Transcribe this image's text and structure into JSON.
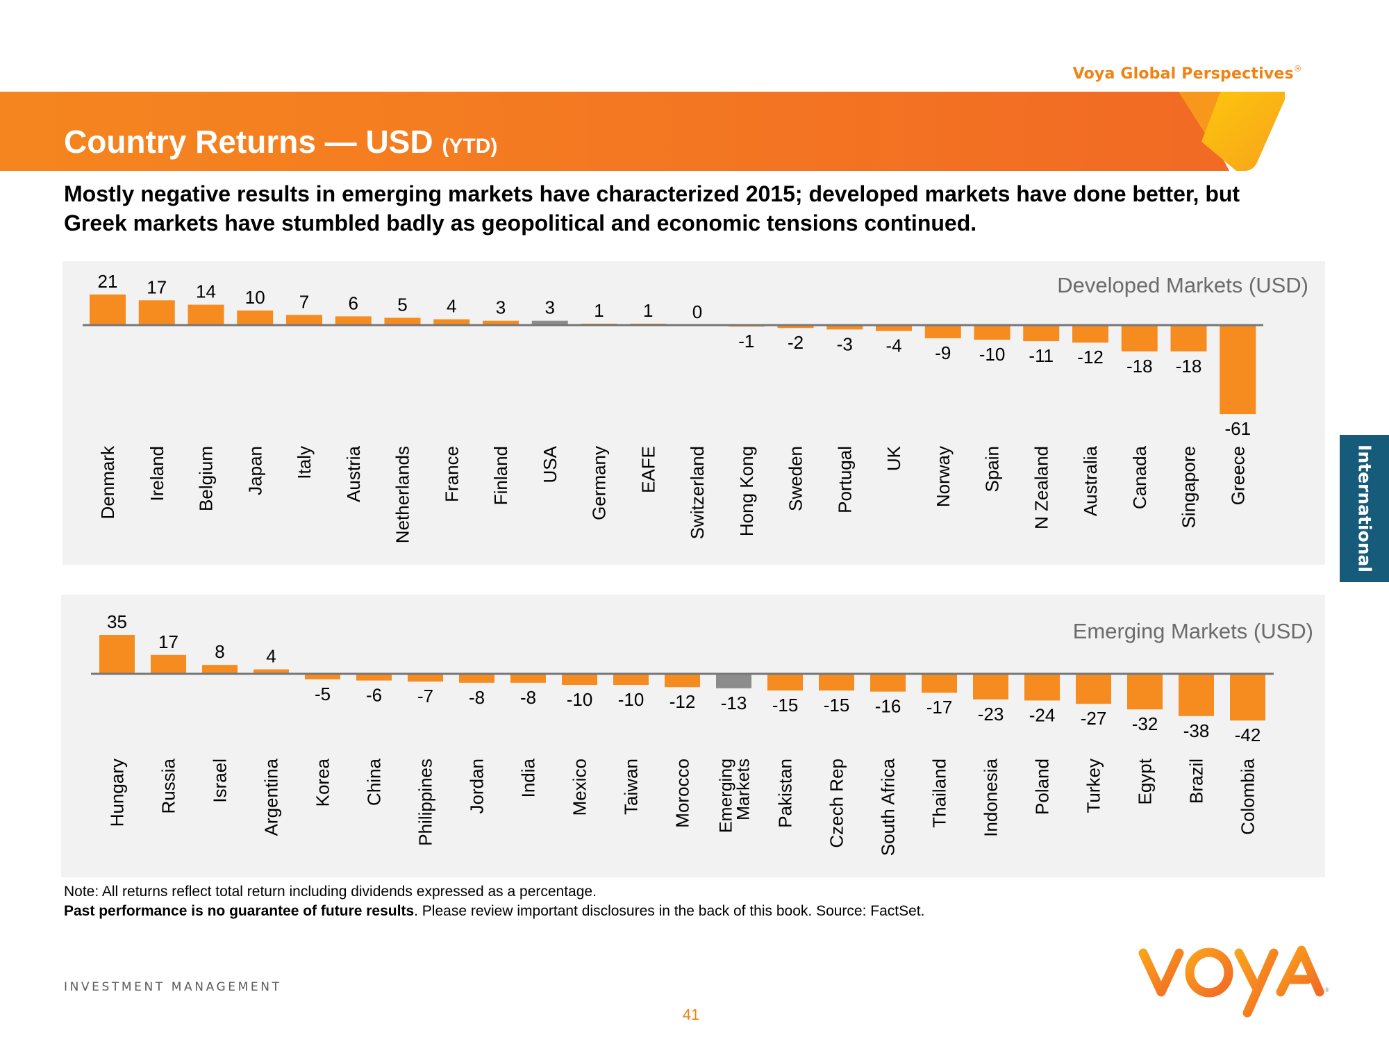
{
  "header": {
    "brand": "Voya Global Perspectives",
    "brand_mark": "®",
    "title": "Country Returns — USD",
    "title_suffix": "(YTD)",
    "subtitle": "Mostly negative results in emerging markets have characterized 2015; developed markets have done better, but Greek markets have stumbled badly as geopolitical and economic tensions continued."
  },
  "side_tab": {
    "label": "International"
  },
  "colors": {
    "bar": "#f68b1f",
    "benchmark_bar": "#8c8c8c",
    "axis": "#777777",
    "panel": "#f2f2f2",
    "banner_start": "#f5851f",
    "banner_end": "#f26a24",
    "tab": "#165b7a",
    "brand": "#f08213"
  },
  "chart_data": [
    {
      "type": "bar",
      "title": "Developed Markets (USD)",
      "xlabel": "",
      "ylabel": "",
      "units": "%",
      "grid": false,
      "categories": [
        "Denmark",
        "Ireland",
        "Belgium",
        "Japan",
        "Italy",
        "Austria",
        "Netherlands",
        "France",
        "Finland",
        "USA",
        "Germany",
        "EAFE",
        "Switzerland",
        "Hong Kong",
        "Sweden",
        "Portugal",
        "UK",
        "Norway",
        "Spain",
        "N Zealand",
        "Australia",
        "Canada",
        "Singapore",
        "Greece"
      ],
      "values": [
        21,
        17,
        14,
        10,
        7,
        6,
        5,
        4,
        3,
        3,
        1,
        1,
        0,
        -1,
        -2,
        -3,
        -4,
        -9,
        -10,
        -11,
        -12,
        -18,
        -18,
        -61
      ],
      "highlight": [
        "USA"
      ],
      "ylim": [
        -61,
        21
      ]
    },
    {
      "type": "bar",
      "title": "Emerging Markets (USD)",
      "xlabel": "",
      "ylabel": "",
      "units": "%",
      "grid": false,
      "categories": [
        "Hungary",
        "Russia",
        "Israel",
        "Argentina",
        "Korea",
        "China",
        "Philippines",
        "Jordan",
        "India",
        "Mexico",
        "Taiwan",
        "Morocco",
        "Emerging Markets",
        "Pakistan",
        "Czech Rep",
        "South Africa",
        "Thailand",
        "Indonesia",
        "Poland",
        "Turkey",
        "Egypt",
        "Brazil",
        "Colombia"
      ],
      "values": [
        35,
        17,
        8,
        4,
        -5,
        -6,
        -7,
        -8,
        -8,
        -10,
        -10,
        -12,
        -13,
        -15,
        -15,
        -16,
        -17,
        -23,
        -24,
        -27,
        -32,
        -38,
        -42
      ],
      "highlight": [
        "Emerging Markets"
      ],
      "ylim": [
        -42,
        35
      ]
    }
  ],
  "footer": {
    "note": "Note: All returns reflect total return including dividends expressed as a percentage.",
    "disclaimer_bold": "Past performance is no guarantee of future results",
    "disclaimer_rest": ". Please review important disclosures in the back of this book. Source: FactSet.",
    "division": "INVESTMENT MANAGEMENT",
    "logo_text": "VOYA",
    "page_number": "41"
  }
}
